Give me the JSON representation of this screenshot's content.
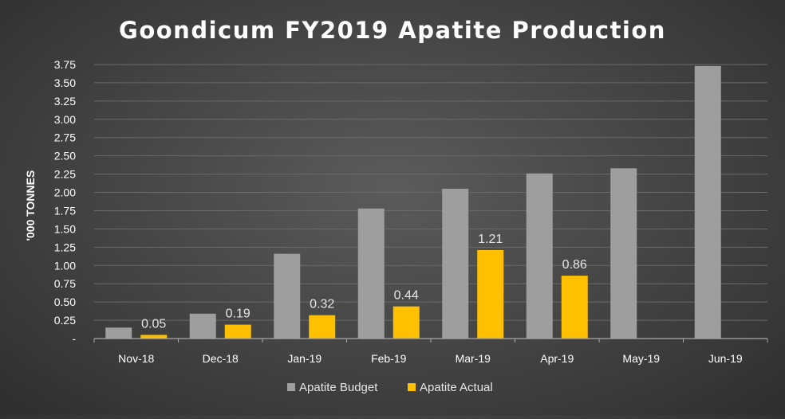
{
  "colors": {
    "budget": "#9e9e9e",
    "actual": "#ffc000",
    "grid": "#6a6a6a",
    "axis": "#a8a8a8",
    "text": "#ffffff"
  },
  "chart_data": {
    "type": "bar",
    "title": "Goondicum FY2019 Apatite Production",
    "ylabel": "'000 TONNES",
    "xlabel": "",
    "categories": [
      "Nov-18",
      "Dec-18",
      "Jan-19",
      "Feb-19",
      "Mar-19",
      "Apr-19",
      "May-19",
      "Jun-19"
    ],
    "series": [
      {
        "name": "Apatite Budget",
        "values": [
          0.15,
          0.34,
          1.16,
          1.78,
          2.05,
          2.26,
          2.33,
          3.73
        ]
      },
      {
        "name": "Apatite Actual",
        "values": [
          0.05,
          0.19,
          0.32,
          0.44,
          1.21,
          0.86,
          null,
          null
        ]
      }
    ],
    "data_labels": [
      "0.05",
      "0.19",
      "0.32",
      "0.44",
      "1.21",
      "0.86",
      null,
      null
    ],
    "yticks": [
      "-",
      "0.25",
      "0.50",
      "0.75",
      "1.00",
      "1.25",
      "1.50",
      "1.75",
      "2.00",
      "2.25",
      "2.50",
      "2.75",
      "3.00",
      "3.25",
      "3.50",
      "3.75"
    ],
    "ylim": [
      0,
      3.75
    ],
    "grid": true,
    "legend_position": "bottom"
  }
}
